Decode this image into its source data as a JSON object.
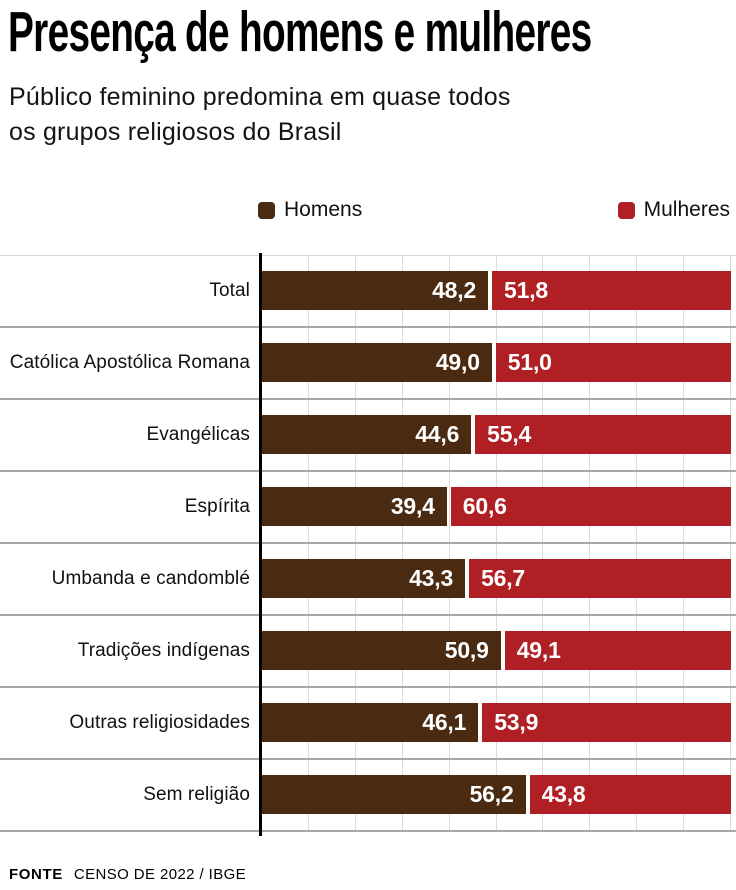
{
  "header": {
    "title": "Presença de homens e mulheres",
    "subtitle_lines": [
      "Público feminino predomina em quase todos",
      "os grupos religiosos do Brasil"
    ]
  },
  "legend": {
    "items": [
      {
        "label": "Homens",
        "color": "#4A2B11"
      },
      {
        "label": "Mulheres",
        "color": "#B01F24"
      }
    ]
  },
  "chart_data": {
    "type": "bar",
    "orientation": "horizontal",
    "stacked": true,
    "unit": "%",
    "xlim": [
      0,
      100
    ],
    "gridline_interval": 10,
    "grid": true,
    "legend_position": "top",
    "categories": [
      "Total",
      "Católica Apostólica Romana",
      "Evangélicas",
      "Espírita",
      "Umbanda e candomblé",
      "Tradições indígenas",
      "Outras religiosidades",
      "Sem religião"
    ],
    "series": [
      {
        "name": "Homens",
        "color": "#4A2B11",
        "values": [
          48.2,
          49.0,
          44.6,
          39.4,
          43.3,
          50.9,
          46.1,
          56.2
        ],
        "labels": [
          "48,2",
          "49,0",
          "44,6",
          "39,4",
          "43,3",
          "50,9",
          "46,1",
          "56,2"
        ]
      },
      {
        "name": "Mulheres",
        "color": "#B01F24",
        "values": [
          51.8,
          51.0,
          55.4,
          60.6,
          56.7,
          49.1,
          53.9,
          43.8
        ],
        "labels": [
          "51,8",
          "51,0",
          "55,4",
          "60,6",
          "56,7",
          "49,1",
          "53,9",
          "43,8"
        ]
      }
    ]
  },
  "footer": {
    "source_label": "FONTE",
    "source_text": "CENSO DE 2022 / IBGE"
  }
}
